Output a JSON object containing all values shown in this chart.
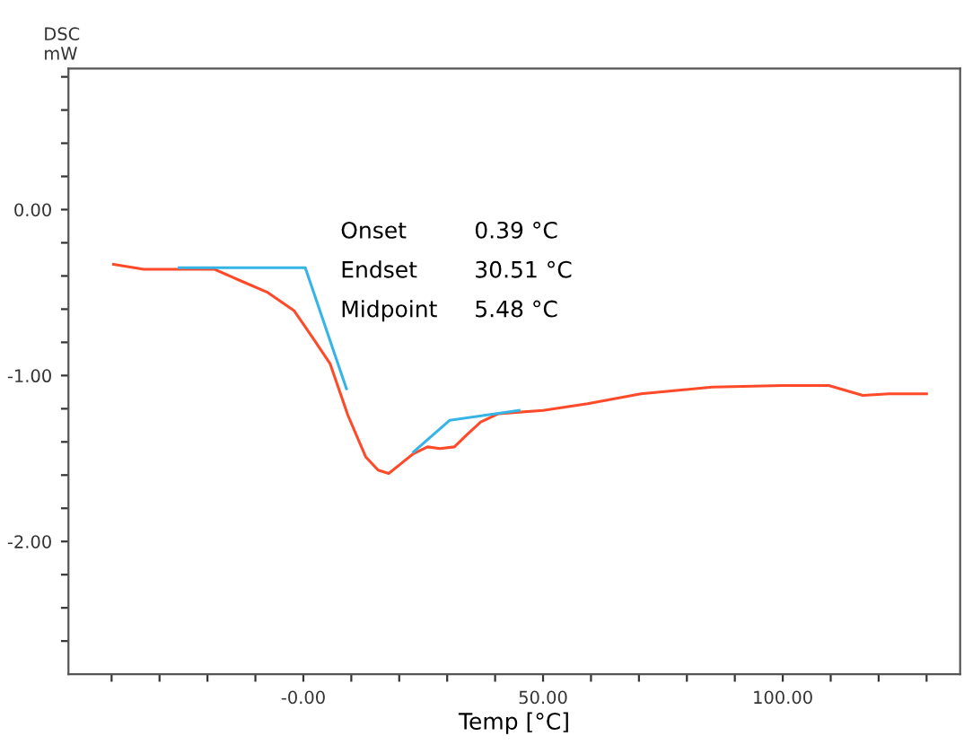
{
  "chart_data": {
    "type": "line",
    "xlabel": "Temp [°C]",
    "ylabel": "DSC\nmW",
    "xlim": [
      -49,
      137
    ],
    "ylim": [
      -2.8,
      0.85
    ],
    "xticks": [
      {
        "value": -40,
        "label": null
      },
      {
        "value": -30,
        "label": null
      },
      {
        "value": -20,
        "label": null
      },
      {
        "value": -10,
        "label": null
      },
      {
        "value": 0,
        "label": "-0.00"
      },
      {
        "value": 10,
        "label": null
      },
      {
        "value": 20,
        "label": null
      },
      {
        "value": 30,
        "label": null
      },
      {
        "value": 40,
        "label": null
      },
      {
        "value": 50,
        "label": "50.00"
      },
      {
        "value": 60,
        "label": null
      },
      {
        "value": 70,
        "label": null
      },
      {
        "value": 80,
        "label": null
      },
      {
        "value": 90,
        "label": null
      },
      {
        "value": 100,
        "label": "100.00"
      },
      {
        "value": 110,
        "label": null
      },
      {
        "value": 120,
        "label": null
      },
      {
        "value": 130,
        "label": null
      }
    ],
    "yticks": [
      {
        "value": 0.8,
        "label": null
      },
      {
        "value": 0.6,
        "label": null
      },
      {
        "value": 0.4,
        "label": null
      },
      {
        "value": 0.2,
        "label": null
      },
      {
        "value": 0,
        "label": "0.00"
      },
      {
        "value": -0.2,
        "label": null
      },
      {
        "value": -0.4,
        "label": null
      },
      {
        "value": -0.6,
        "label": null
      },
      {
        "value": -0.8,
        "label": null
      },
      {
        "value": -1,
        "label": "-1.00"
      },
      {
        "value": -1.2,
        "label": null
      },
      {
        "value": -1.4,
        "label": null
      },
      {
        "value": -1.6,
        "label": null
      },
      {
        "value": -1.8,
        "label": null
      },
      {
        "value": -2,
        "label": "-2.00"
      },
      {
        "value": -2.2,
        "label": null
      },
      {
        "value": -2.4,
        "label": null
      },
      {
        "value": -2.6,
        "label": null
      }
    ],
    "series": [
      {
        "color": "#ff4a2a",
        "x": [
          -39.6,
          -33.3,
          -25.9,
          -18.5,
          -13,
          -7.4,
          -1.9,
          1.9,
          5.6,
          9.3,
          13,
          15.6,
          17.8,
          20.4,
          23,
          25.9,
          28.5,
          31.5,
          34,
          37,
          40.7,
          50,
          59.3,
          70.4,
          85.2,
          100,
          109.6,
          116.7,
          122.2,
          130
        ],
        "values": [
          -0.33,
          -0.36,
          -0.36,
          -0.36,
          -0.43,
          -0.5,
          -0.61,
          -0.77,
          -0.93,
          -1.24,
          -1.49,
          -1.57,
          -1.59,
          -1.53,
          -1.47,
          -1.43,
          -1.44,
          -1.43,
          -1.36,
          -1.28,
          -1.23,
          -1.21,
          -1.17,
          -1.11,
          -1.07,
          -1.06,
          -1.06,
          -1.12,
          -1.11,
          -1.11
        ]
      },
      {
        "color": "#35b4e6",
        "x": [
          -25.9,
          0.4,
          9,
          16,
          23,
          30.5,
          45
        ],
        "values": [
          -0.35,
          -0.35,
          -1.08,
          null,
          -1.46,
          -1.27,
          -1.21
        ]
      }
    ],
    "annotations": [
      "Onset",
      "0.39 °C",
      "Endset",
      "30.51 °C",
      "Midpoint",
      "5.48 °C"
    ],
    "grid": false,
    "legend": false
  }
}
